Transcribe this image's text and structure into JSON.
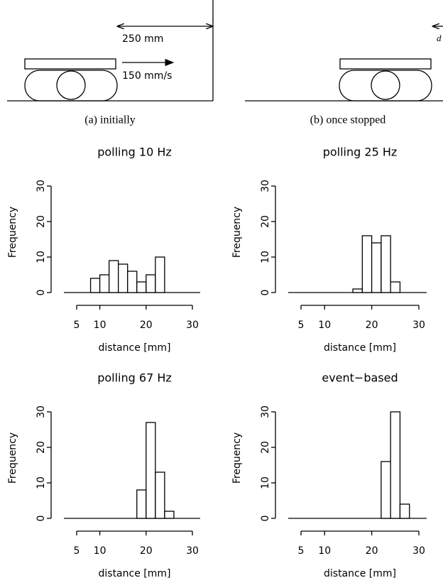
{
  "diagram": {
    "panel_a": {
      "distance_label": "250 mm",
      "speed_label": "150 mm/s",
      "caption": "(a) initially"
    },
    "panel_b": {
      "gap_label": "d",
      "caption": "(b) once stopped"
    }
  },
  "chart_data": [
    {
      "type": "histogram",
      "title": "polling 10 Hz",
      "x_label": "distance [mm]",
      "y_label": "Frequency",
      "bins": [
        8,
        10,
        12,
        14,
        16,
        18,
        20,
        22,
        24
      ],
      "values": [
        4,
        5,
        9,
        8,
        6,
        3,
        5,
        10
      ],
      "xlim": [
        5,
        30
      ],
      "xticks": [
        5,
        10,
        20,
        30
      ],
      "ylim": [
        0,
        30
      ],
      "yticks": [
        0,
        10,
        20,
        30
      ],
      "color": "#ffffff"
    },
    {
      "type": "histogram",
      "title": "polling 25 Hz",
      "x_label": "distance [mm]",
      "y_label": "Frequency",
      "bins": [
        16,
        18,
        20,
        22,
        24,
        26
      ],
      "values": [
        1,
        16,
        14,
        16,
        3
      ],
      "xlim": [
        5,
        30
      ],
      "xticks": [
        5,
        10,
        20,
        30
      ],
      "ylim": [
        0,
        30
      ],
      "yticks": [
        0,
        10,
        20,
        30
      ],
      "color": "#ffffff"
    },
    {
      "type": "histogram",
      "title": "polling 67 Hz",
      "x_label": "distance [mm]",
      "y_label": "Frequency",
      "bins": [
        18,
        20,
        22,
        24,
        26
      ],
      "values": [
        8,
        27,
        13,
        2
      ],
      "xlim": [
        5,
        30
      ],
      "xticks": [
        5,
        10,
        20,
        30
      ],
      "ylim": [
        0,
        30
      ],
      "yticks": [
        0,
        10,
        20,
        30
      ],
      "color": "#ffffff"
    },
    {
      "type": "histogram",
      "title": "event−based",
      "x_label": "distance [mm]",
      "y_label": "Frequency",
      "bins": [
        22,
        24,
        26,
        28
      ],
      "values": [
        16,
        30,
        4
      ],
      "xlim": [
        5,
        30
      ],
      "xticks": [
        5,
        10,
        20,
        30
      ],
      "ylim": [
        0,
        30
      ],
      "yticks": [
        0,
        10,
        20,
        30
      ],
      "color": "#ffffff"
    }
  ]
}
